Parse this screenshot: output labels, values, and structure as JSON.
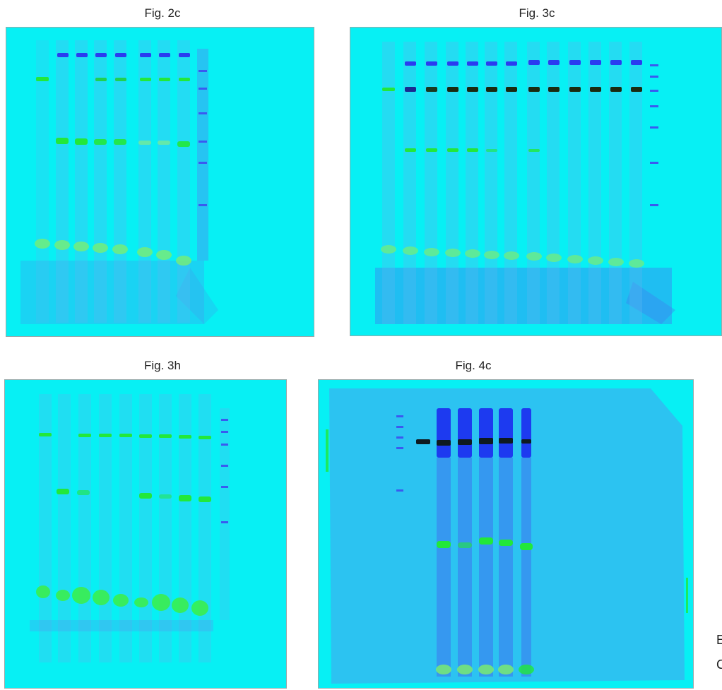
{
  "figures": {
    "fig2c": {
      "caption": "Fig. 2c"
    },
    "fig3c": {
      "caption": "Fig. 3c"
    },
    "fig3h": {
      "caption": "Fig. 3h"
    },
    "fig4c": {
      "caption": "Fig. 4c"
    }
  },
  "edge_text": {
    "line1": "E",
    "line2": "C"
  },
  "colors": {
    "gel_background": "#07f0f4",
    "blue_band": "#2a3cf0",
    "green_band": "#22e83a",
    "dark_band": "#1a2a10",
    "lane_tint": "#5ab8f0",
    "fig4c_background": "#3ab4f0"
  }
}
